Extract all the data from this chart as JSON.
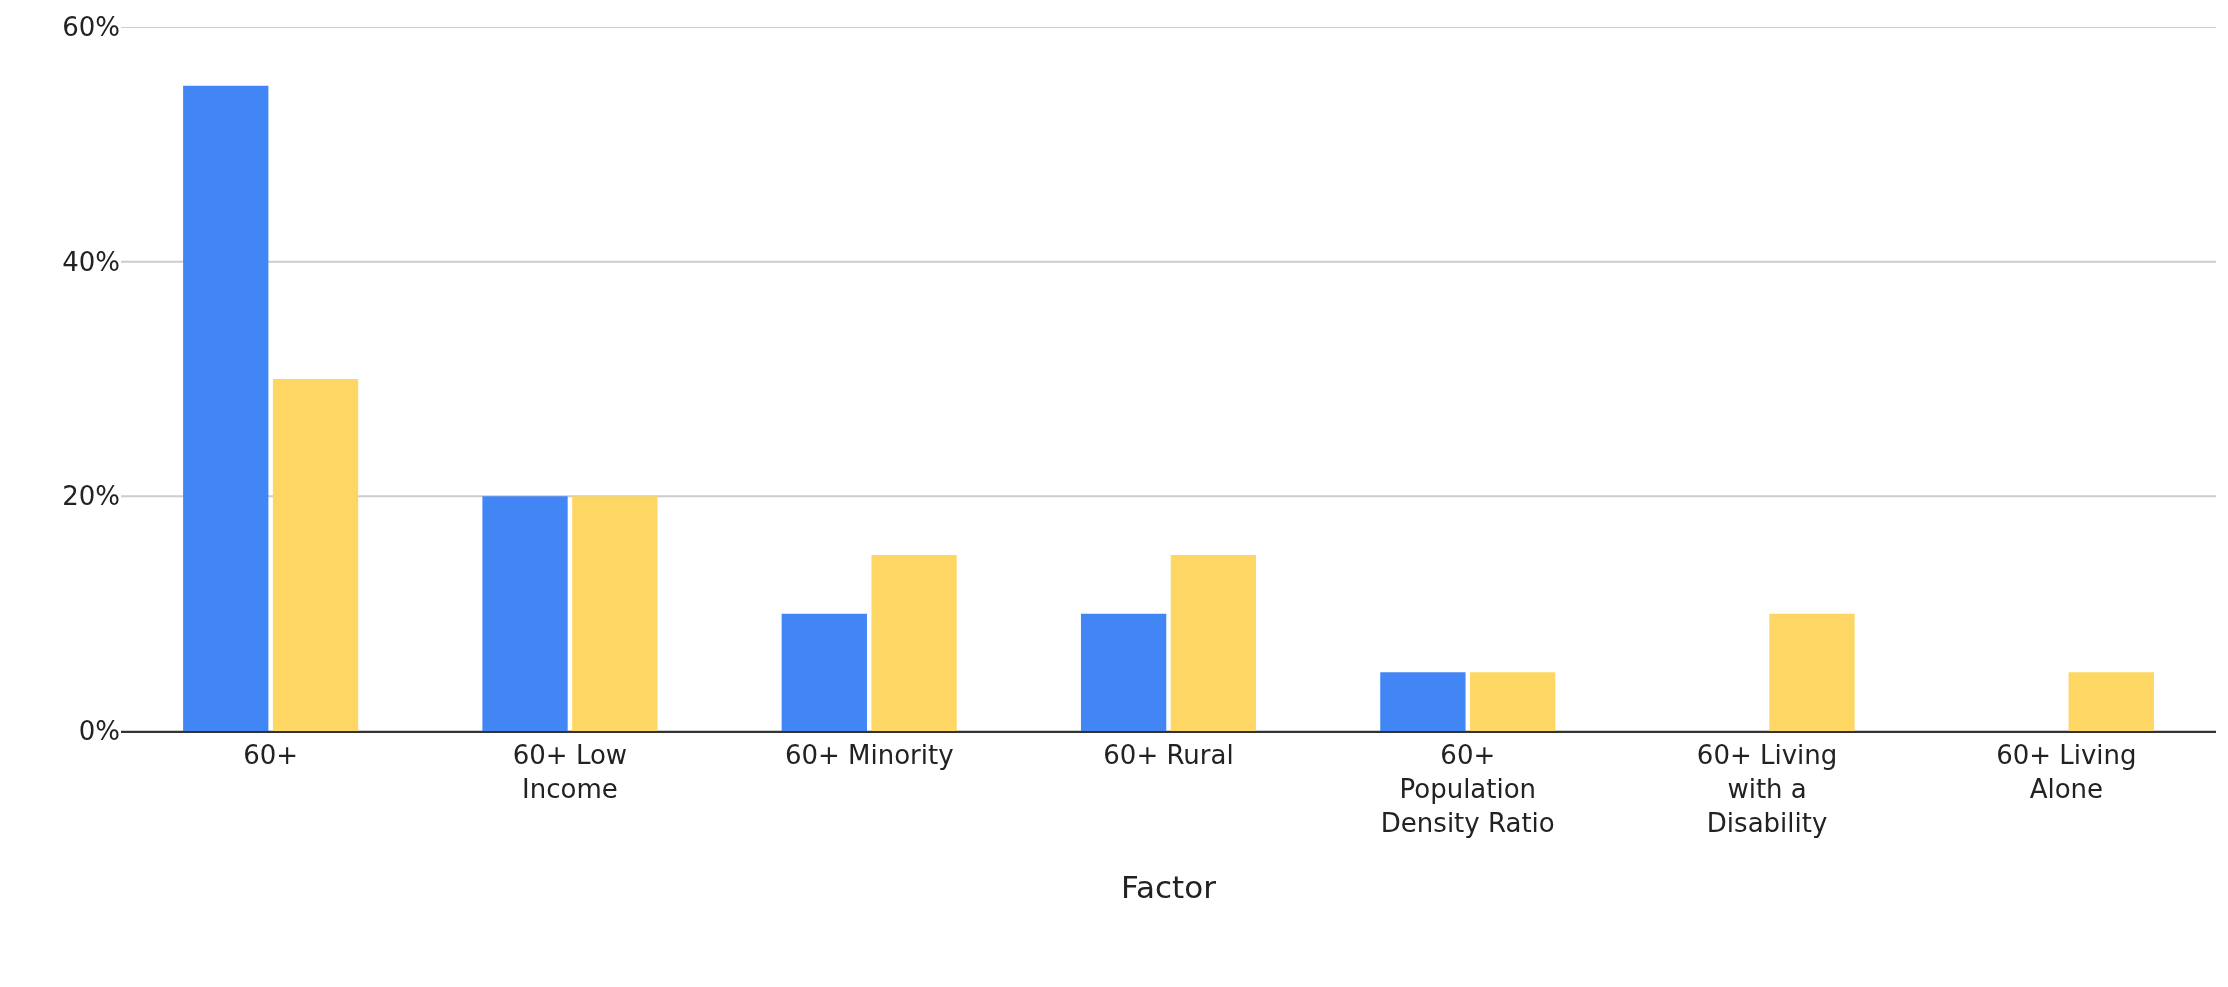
{
  "chart_data": {
    "type": "bar",
    "xlabel": "Factor",
    "categories": [
      "60+",
      "60+ Low Income",
      "60+ Minority",
      "60+ Rural",
      "60+ Population Density Ratio",
      "60+ Living with a Disability",
      "60+ Living Alone"
    ],
    "series": [
      {
        "color": "#4285f4",
        "values": [
          55,
          20,
          10,
          10,
          5,
          null,
          null
        ]
      },
      {
        "color": "#fdd663",
        "values": [
          30,
          20,
          15,
          15,
          5,
          10,
          5
        ]
      }
    ],
    "ylim": [
      0,
      60
    ],
    "yticks": [
      {
        "value": 0,
        "label": "0%"
      },
      {
        "value": 20,
        "label": "20%"
      },
      {
        "value": 40,
        "label": "40%"
      },
      {
        "value": 60,
        "label": "60%"
      }
    ],
    "grid": "y"
  }
}
